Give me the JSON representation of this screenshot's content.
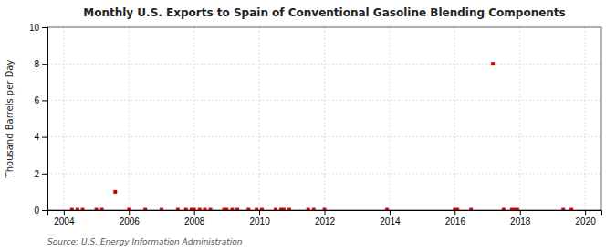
{
  "chart_data": {
    "type": "scatter",
    "title": "Monthly U.S. Exports to Spain of Conventional Gasoline Blending Components",
    "ylabel": "Thousand Barrels per Day",
    "source": "Source: U.S. Energy Information Administration",
    "x": [
      2004.25,
      2004.42,
      2004.58,
      2005.0,
      2005.17,
      2005.58,
      2006.0,
      2006.5,
      2007.0,
      2007.5,
      2007.75,
      2007.92,
      2008.0,
      2008.17,
      2008.33,
      2008.5,
      2008.92,
      2009.0,
      2009.17,
      2009.33,
      2009.67,
      2009.92,
      2010.08,
      2010.5,
      2010.67,
      2010.75,
      2010.92,
      2011.5,
      2011.67,
      2012.0,
      2013.92,
      2016.0,
      2016.08,
      2016.5,
      2017.17,
      2017.5,
      2017.75,
      2017.83,
      2017.92,
      2019.33,
      2019.58
    ],
    "values": [
      0.02,
      0.02,
      0.02,
      0.02,
      0.02,
      1.0,
      0.02,
      0.02,
      0.02,
      0.02,
      0.02,
      0.02,
      0.02,
      0.02,
      0.02,
      0.02,
      0.02,
      0.02,
      0.02,
      0.02,
      0.02,
      0.02,
      0.02,
      0.02,
      0.02,
      0.02,
      0.02,
      0.02,
      0.02,
      0.02,
      0.02,
      0.02,
      0.02,
      0.02,
      8.0,
      0.02,
      0.02,
      0.02,
      0.02,
      0.02,
      0.02
    ],
    "color": "#cc0000",
    "marker": "square",
    "xlim": [
      2003.5,
      2020.5
    ],
    "ylim": [
      0,
      10
    ],
    "xticks": [
      2004,
      2006,
      2008,
      2010,
      2012,
      2014,
      2016,
      2018,
      2020
    ],
    "yticks": [
      0,
      2,
      4,
      6,
      8,
      10
    ],
    "grid": true
  }
}
